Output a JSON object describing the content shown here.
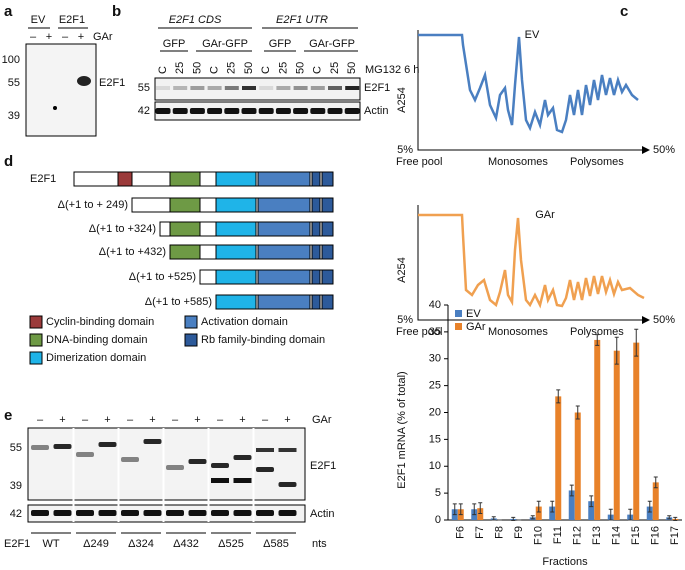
{
  "panels": {
    "a": {
      "label": "a",
      "headers": [
        "EV",
        "E2F1"
      ],
      "lanes": [
        "–",
        "+",
        "–",
        "+"
      ],
      "treatment": "GAr",
      "markers": [
        "100",
        "55",
        "39"
      ],
      "band": "E2F1"
    },
    "b": {
      "label": "b",
      "constructs": [
        "E2F1 CDS",
        "E2F1 UTR"
      ],
      "groups": [
        "GFP",
        "GAr-GFP",
        "GFP",
        "GAr-GFP"
      ],
      "lanes": [
        "C",
        "25",
        "50",
        "C",
        "25",
        "50",
        "C",
        "25",
        "50",
        "C",
        "25",
        "50"
      ],
      "treatment": "MG132 6 h",
      "markers": [
        "55",
        "42"
      ],
      "bands": [
        "E2F1",
        "Actin"
      ]
    },
    "c": {
      "label": "c",
      "profiles": [
        {
          "title": "EV",
          "axis": "A254",
          "start": "5%",
          "end": "50%",
          "regions": [
            "Free pool",
            "Monosomes",
            "Polysomes"
          ]
        },
        {
          "title": "GAr",
          "axis": "A254",
          "start": "5%",
          "end": "50%",
          "regions": [
            "Free pool",
            "Monosomes",
            "Polysomes"
          ]
        }
      ]
    },
    "d": {
      "label": "d",
      "constructs": [
        "E2F1",
        "Δ(+1 to + 249)",
        "Δ(+1 to +324)",
        "Δ(+1 to +432)",
        "Δ(+1 to +525)",
        "Δ(+1 to +585)"
      ],
      "legend": [
        "Cyclin-binding domain",
        "DNA-binding domain",
        "Dimerization domain",
        "Activation domain",
        "Rb family-binding domain"
      ]
    },
    "e": {
      "label": "e",
      "lanes": [
        "–",
        "+",
        "–",
        "+",
        "–",
        "+",
        "–",
        "+",
        "–",
        "+",
        "–",
        "+"
      ],
      "treatment": "GAr",
      "markers": [
        "55",
        "39",
        "42"
      ],
      "bands": [
        "E2F1",
        "Actin"
      ],
      "row_label": "E2F1",
      "constructs": [
        "WT",
        "Δ249",
        "Δ324",
        "Δ432",
        "Δ525",
        "Δ585"
      ],
      "unit": "nts"
    }
  },
  "chart_data": {
    "type": "bar",
    "y_label": "E2F1 mRNA (% of total)",
    "x_label": "Fractions",
    "categories": [
      "F6",
      "F7",
      "F8",
      "F9",
      "F10",
      "F11",
      "F12",
      "F13",
      "F14",
      "F15",
      "F16",
      "F17"
    ],
    "series": [
      {
        "name": "EV",
        "color": "#4a7fc1",
        "values": [
          2,
          2,
          0.3,
          0.2,
          0.5,
          2.5,
          5.5,
          3.5,
          1,
          1,
          2.5,
          0.5
        ],
        "errors": [
          1,
          1,
          0.3,
          0.3,
          0.3,
          1,
          1,
          1,
          1,
          1,
          1,
          0.3
        ]
      },
      {
        "name": "GAr",
        "color": "#e8822a",
        "values": [
          2,
          2.2,
          0,
          0,
          2.5,
          23,
          20,
          33.5,
          31.5,
          33,
          7,
          0.2
        ],
        "errors": [
          1,
          1,
          0,
          0,
          1,
          1.2,
          1.2,
          1,
          2.5,
          2.5,
          1,
          0.3
        ]
      }
    ],
    "ylim": [
      0,
      40
    ],
    "yticks": [
      0,
      5,
      10,
      15,
      20,
      25,
      30,
      35,
      40
    ],
    "legend": "top-left"
  }
}
